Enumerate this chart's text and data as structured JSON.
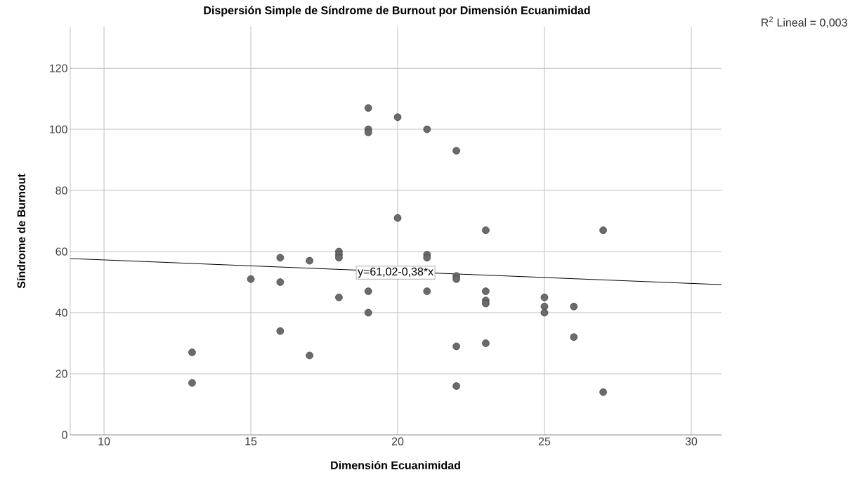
{
  "chart_data": {
    "type": "scatter",
    "title": "Dispersión Simple de Síndrome de Burnout por Dimensión Ecuanimidad",
    "xlabel": "Dimensión Ecuanimidad",
    "ylabel": "Síndrome de Burnout",
    "series": [
      {
        "color": "#6b6b6b",
        "x": [
          13,
          13,
          15,
          16,
          16,
          16,
          17,
          17,
          18,
          18,
          18,
          18,
          19,
          19,
          19,
          19,
          19,
          20,
          20,
          21,
          21,
          21,
          21,
          22,
          22,
          22,
          22,
          22,
          23,
          23,
          23,
          23,
          23,
          25,
          25,
          25,
          26,
          26,
          27,
          27
        ],
        "values": [
          27,
          17,
          51,
          58,
          50,
          34,
          57,
          26,
          60,
          59,
          58,
          45,
          107,
          100,
          99,
          47,
          40,
          104,
          71,
          100,
          59,
          58,
          47,
          93,
          52,
          51,
          29,
          16,
          67,
          47,
          44,
          43,
          30,
          45,
          42,
          40,
          42,
          32,
          67,
          14
        ]
      },
      {
        "type": "line",
        "color": "#000000",
        "marker": "none",
        "x": [
          8.85,
          31.03
        ],
        "values": [
          57.7,
          49.2
        ]
      }
    ],
    "xlim": [
      8.85,
      31.03
    ],
    "ylim": [
      0,
      133.6
    ],
    "xticks": [
      10,
      15,
      20,
      25,
      30
    ],
    "yticks": [
      0,
      20,
      40,
      60,
      80,
      100,
      120
    ],
    "grid": true,
    "marker": "circle",
    "annotations": [
      "R$^{2}$ Lineal = 0,003",
      {
        "text": "y=61,02-0,38*x",
        "x": 19.93,
        "y": 53.1
      }
    ]
  }
}
